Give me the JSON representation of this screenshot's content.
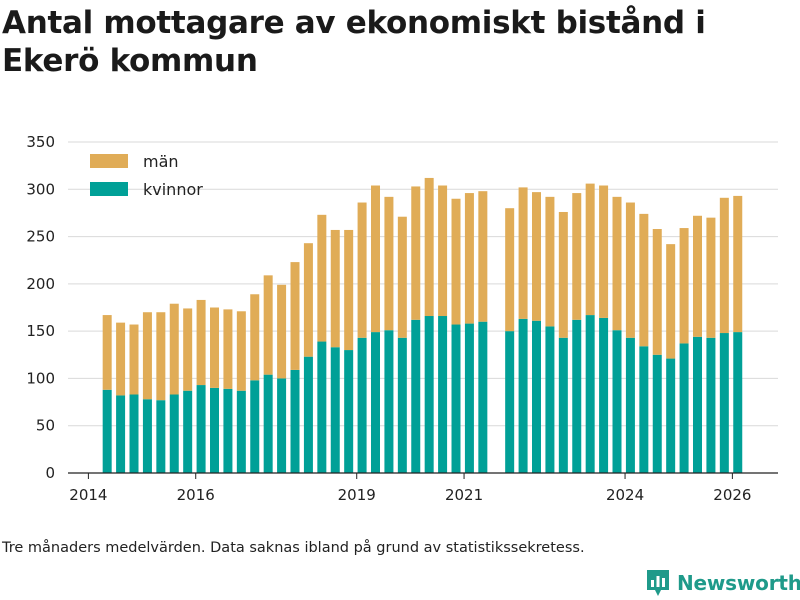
{
  "title": "Antal mottagare av ekonomiskt bistånd i Ekerö kommun",
  "footnote": "Tre månaders medelvärden. Data saknas ibland på grund av statistikssekretess.",
  "brand": {
    "name": "Newsworthy",
    "icon": "bar-chart-logo-icon"
  },
  "colors": {
    "women": "#00a097",
    "men": "#e0ac57",
    "grid": "#d9d9d9",
    "axis": "#222222"
  },
  "chart_data": {
    "type": "bar",
    "stacked": true,
    "title": "Antal mottagare av ekonomiskt bistånd i Ekerö kommun",
    "xlabel": "",
    "ylabel": "",
    "ylim": [
      0,
      350
    ],
    "yticks": [
      0,
      50,
      100,
      150,
      200,
      250,
      300,
      350
    ],
    "xlim": [
      2013.62,
      2026.85
    ],
    "xticks": [
      2014,
      2016,
      2019,
      2021,
      2024,
      2026
    ],
    "legend_position": "top-left",
    "grid": true,
    "x": [
      2014.35,
      2014.6,
      2014.85,
      2015.1,
      2015.35,
      2015.6,
      2015.85,
      2016.1,
      2016.35,
      2016.6,
      2016.85,
      2017.1,
      2017.35,
      2017.6,
      2017.85,
      2018.1,
      2018.35,
      2018.6,
      2018.85,
      2019.1,
      2019.35,
      2019.6,
      2019.85,
      2020.1,
      2020.35,
      2020.6,
      2020.85,
      2021.1,
      2021.35,
      2021.85,
      2022.1,
      2022.35,
      2022.6,
      2022.85,
      2023.1,
      2023.35,
      2023.6,
      2023.85,
      2024.1,
      2024.35,
      2024.6,
      2024.85,
      2025.1,
      2025.35,
      2025.6,
      2025.85,
      2026.1
    ],
    "series": [
      {
        "name": "kvinnor",
        "values": [
          88,
          82,
          83,
          78,
          77,
          83,
          87,
          93,
          90,
          89,
          87,
          98,
          104,
          100,
          109,
          123,
          139,
          133,
          130,
          143,
          149,
          151,
          143,
          162,
          166,
          166,
          157,
          158,
          160,
          150,
          163,
          161,
          155,
          143,
          162,
          167,
          164,
          151,
          143,
          134,
          125,
          121,
          137,
          144,
          143,
          148,
          149
        ]
      },
      {
        "name": "män",
        "values": [
          79,
          77,
          74,
          92,
          93,
          96,
          87,
          90,
          85,
          84,
          84,
          91,
          105,
          99,
          114,
          120,
          134,
          124,
          127,
          143,
          155,
          141,
          128,
          141,
          146,
          138,
          133,
          138,
          138,
          130,
          139,
          136,
          137,
          133,
          134,
          139,
          140,
          141,
          143,
          140,
          133,
          121,
          122,
          128,
          127,
          143,
          144
        ]
      }
    ]
  }
}
